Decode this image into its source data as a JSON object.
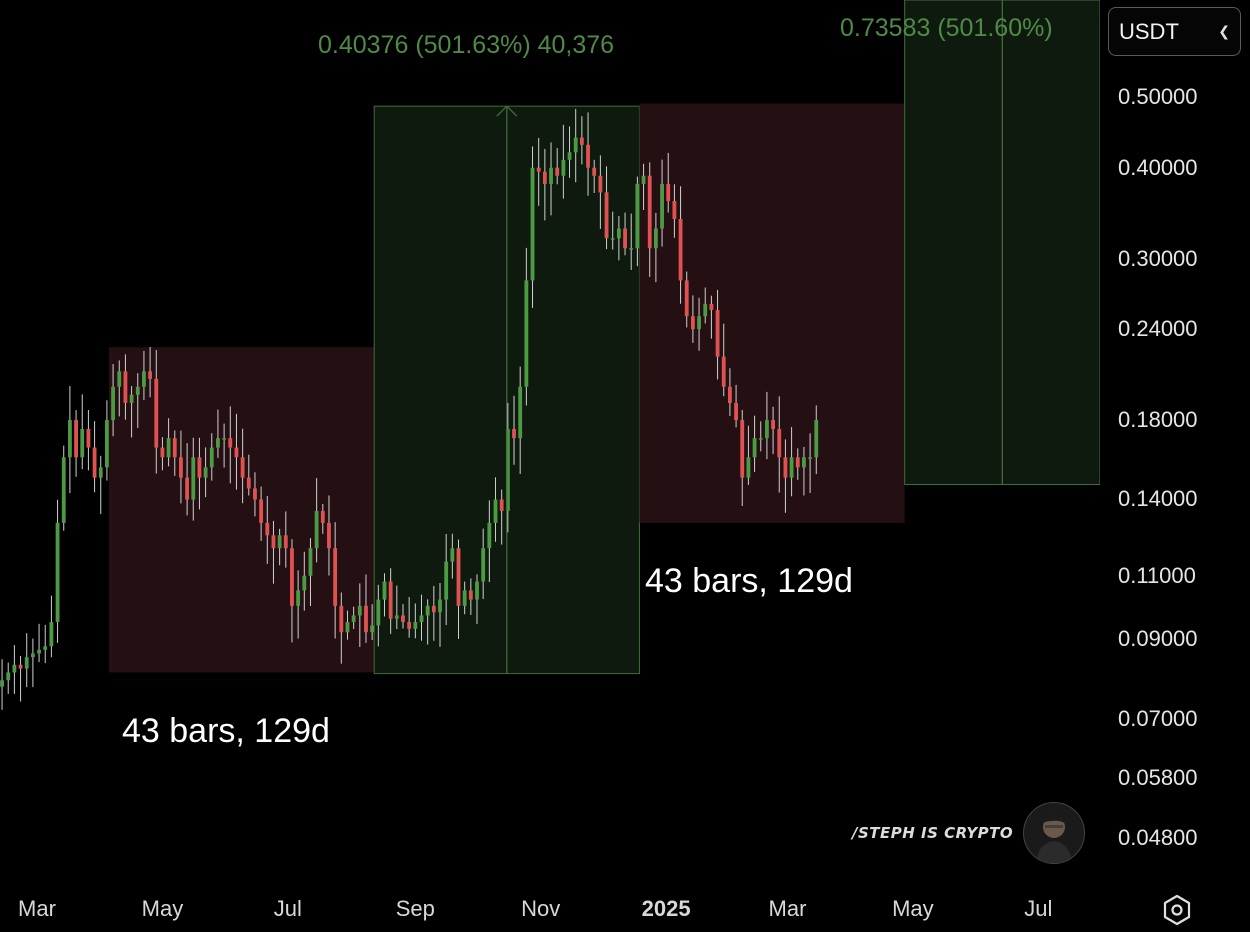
{
  "toolbar": {
    "currency": "USDT"
  },
  "watermark": {
    "text": "/STEPH IS CRYPTO"
  },
  "annotations": {
    "left": "43 bars, 129d",
    "right": "43 bars, 129d"
  },
  "measurements": {
    "first": "0.40376 (501.63%) 40,376",
    "second": "0.73583 (501.60%)"
  },
  "colors": {
    "up": "#4c9a44",
    "down": "#e05252",
    "wick": "#d0d0d0",
    "red_zone": "#241013",
    "green_zone": "#0f1a0f",
    "green_line": "#3f6d3a"
  },
  "icons": {
    "settings": "hexagon-settings-icon",
    "dropdown": "chevron-down-icon",
    "avatar": "profile-avatar-icon"
  },
  "chart_data": {
    "type": "candlestick",
    "interval": "3d",
    "scale": "log",
    "ylim": [
      0.042,
      0.68
    ],
    "y_ticks": [
      "0.50000",
      "0.40000",
      "0.30000",
      "0.24000",
      "0.18000",
      "0.14000",
      "0.11000",
      "0.09000",
      "0.07000",
      "0.05800",
      "0.04800"
    ],
    "x_ticks": [
      "Mar",
      "May",
      "Jul",
      "Sep",
      "Nov",
      "2025",
      "Mar",
      "May",
      "Jul"
    ],
    "x_range": [
      "2024-02-12",
      "2025-07-31"
    ],
    "x_tick_dates": [
      "2024-03-01",
      "2024-05-01",
      "2024-07-01",
      "2024-09-01",
      "2024-11-01",
      "2025-01-01",
      "2025-03-01",
      "2025-05-01",
      "2025-07-01"
    ],
    "ranges": [
      {
        "color": "red",
        "from": "2024-04-05",
        "to": "2024-08-12",
        "high": 0.2267,
        "low": 0.081,
        "label": "43 bars, 129d"
      },
      {
        "color": "green",
        "from": "2024-08-12",
        "to": "2024-12-19",
        "high": 0.486,
        "low": 0.0807,
        "label": "0.40376 (501.63%) 40,376"
      },
      {
        "color": "red",
        "from": "2024-12-19",
        "to": "2025-04-27",
        "high": 0.49,
        "low": 0.13,
        "label": "43 bars, 129d"
      },
      {
        "color": "green",
        "from": "2025-04-27",
        "to": "2025-09-03",
        "high": 0.8826,
        "low": 0.1468,
        "label": "0.73583 (501.60%)"
      }
    ],
    "closes": [
      0.079,
      0.081,
      0.083,
      0.082,
      0.085,
      0.086,
      0.087,
      0.088,
      0.095,
      0.13,
      0.16,
      0.18,
      0.16,
      0.175,
      0.165,
      0.15,
      0.155,
      0.18,
      0.2,
      0.21,
      0.19,
      0.195,
      0.2,
      0.21,
      0.205,
      0.165,
      0.16,
      0.17,
      0.16,
      0.15,
      0.14,
      0.16,
      0.15,
      0.155,
      0.165,
      0.17,
      0.17,
      0.165,
      0.16,
      0.15,
      0.145,
      0.14,
      0.13,
      0.125,
      0.12,
      0.125,
      0.12,
      0.1,
      0.105,
      0.11,
      0.12,
      0.135,
      0.13,
      0.12,
      0.1,
      0.092,
      0.095,
      0.097,
      0.1,
      0.092,
      0.094,
      0.102,
      0.108,
      0.096,
      0.097,
      0.095,
      0.093,
      0.095,
      0.097,
      0.1,
      0.098,
      0.102,
      0.115,
      0.12,
      0.1,
      0.105,
      0.102,
      0.108,
      0.12,
      0.13,
      0.14,
      0.135,
      0.175,
      0.17,
      0.2,
      0.28,
      0.4,
      0.395,
      0.38,
      0.4,
      0.39,
      0.41,
      0.42,
      0.44,
      0.43,
      0.4,
      0.39,
      0.37,
      0.32,
      0.32,
      0.33,
      0.31,
      0.31,
      0.38,
      0.39,
      0.31,
      0.33,
      0.38,
      0.36,
      0.34,
      0.28,
      0.25,
      0.24,
      0.25,
      0.26,
      0.255,
      0.22,
      0.2,
      0.19,
      0.18,
      0.15,
      0.16,
      0.17,
      0.17,
      0.18,
      0.175,
      0.16,
      0.15,
      0.16,
      0.155,
      0.16,
      0.16,
      0.18
    ]
  }
}
